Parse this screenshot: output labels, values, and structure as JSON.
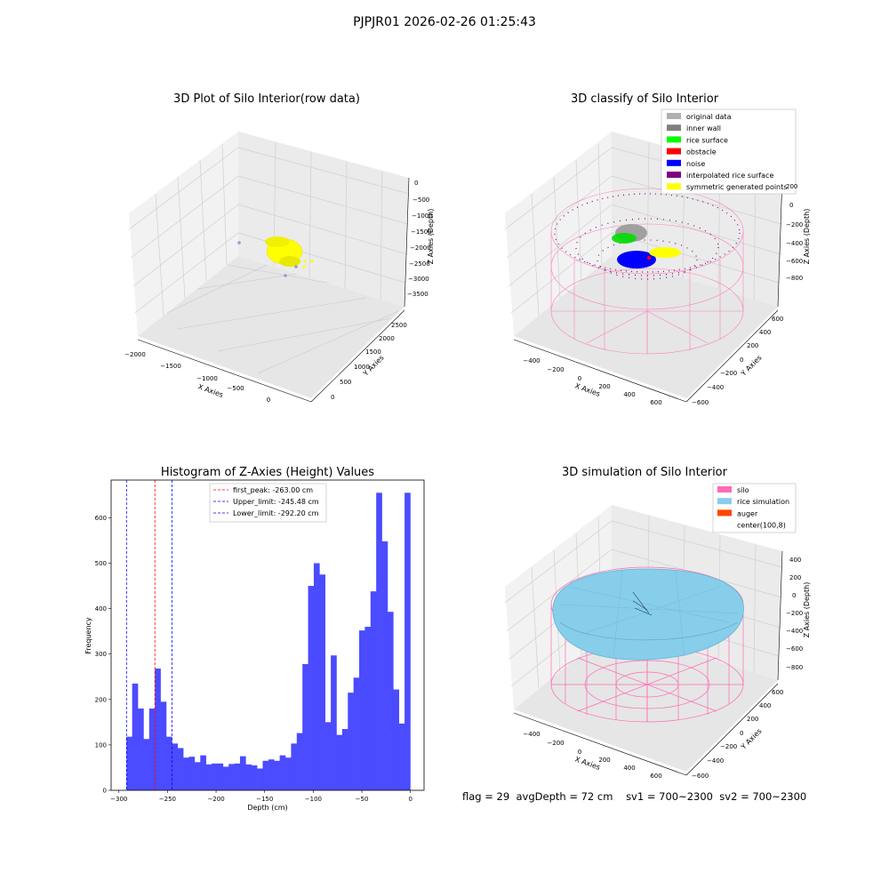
{
  "figure": {
    "title": "PJPJR01 2026-02-26 01:25:43",
    "status": {
      "flag": "flag = 29",
      "avg_depth": "avgDepth = 72 cm",
      "sv1": "sv1 = 700~2300",
      "sv2": "sv2 = 700~2300"
    }
  },
  "colors": {
    "histogram_bar": "#4b4bff",
    "first_peak_line": "#ff0000",
    "limit_lines": "#0000ff",
    "silo_wire": "#ff69b4",
    "rice_simulation": "#87ceeb",
    "auger": "#ff4500",
    "yellow_points": "#ffff00",
    "green_points": "#00ff00",
    "blue_points": "#0000ff",
    "grey_points": "#888888"
  },
  "chart_data": [
    {
      "type": "scatter",
      "projection": "3d",
      "title": "3D Plot of Silo Interior(row data)",
      "xlabel": "X Axies",
      "ylabel": "Y Axies",
      "zlabel": "Z Axies (Depth)",
      "x_ticks": [
        "−2000",
        "−1500",
        "−1000",
        "−500",
        "0"
      ],
      "y_ticks": [
        "0",
        "500",
        "1000",
        "1500",
        "2000",
        "2500"
      ],
      "z_ticks": [
        "0",
        "−500",
        "−1000",
        "−1500",
        "−2000",
        "−2500",
        "−3000",
        "−3500"
      ],
      "grid": true,
      "series": [
        {
          "color": "#ffff00",
          "description_points": "dense cluster"
        }
      ]
    },
    {
      "type": "scatter",
      "projection": "3d",
      "title": "3D classify of Silo Interior",
      "xlabel": "X Axies",
      "ylabel": "Y Axies",
      "zlabel": "Z Axies (Depth)",
      "x_ticks": [
        "−400",
        "−200",
        "0",
        "200",
        "400",
        "600"
      ],
      "y_ticks": [
        "−600",
        "−400",
        "−200",
        "0",
        "200",
        "400",
        "600"
      ],
      "z_ticks": [
        "200",
        "0",
        "−200",
        "−400",
        "−600",
        "−800"
      ],
      "grid": true,
      "legend_position": "top-right",
      "legend": [
        {
          "label": "original data",
          "color": "#b0b0b0"
        },
        {
          "label": "inner wall",
          "color": "#808080"
        },
        {
          "label": "rice surface",
          "color": "#00ff00"
        },
        {
          "label": "obstacle",
          "color": "#ff0000"
        },
        {
          "label": "noise",
          "color": "#0000ff"
        },
        {
          "label": "interpolated rice surface",
          "color": "#800080"
        },
        {
          "label": "symmetric generated points",
          "color": "#ffff00"
        }
      ]
    },
    {
      "type": "bar",
      "title": "Histogram of Z-Axies (Height) Values",
      "xlabel": "Depth (cm)",
      "ylabel": "Frequency",
      "xlim": [
        -308,
        14
      ],
      "ylim": [
        0,
        683
      ],
      "x_ticks": [
        -300,
        -250,
        -200,
        -150,
        -100,
        -50,
        0
      ],
      "y_ticks": [
        0,
        100,
        200,
        300,
        400,
        500,
        600
      ],
      "bin_start": -292.2,
      "bin_width": 5.84,
      "values": [
        118,
        235,
        180,
        113,
        180,
        268,
        195,
        118,
        103,
        93,
        72,
        74,
        62,
        77,
        57,
        59,
        59,
        52,
        58,
        59,
        75,
        57,
        55,
        48,
        65,
        68,
        65,
        77,
        72,
        103,
        126,
        278,
        450,
        500,
        475,
        150,
        297,
        122,
        135,
        215,
        248,
        352,
        360,
        438,
        655,
        548,
        393,
        222,
        147,
        655
      ],
      "legend_position": "top-center",
      "reference_lines": [
        {
          "label": "first_peak: -263.00 cm",
          "x": -263.0,
          "color": "#ff0000"
        },
        {
          "label": "Upper_limit: -245.48 cm",
          "x": -245.48,
          "color": "#0000ff"
        },
        {
          "label": "Lower_limit: -292.20 cm",
          "x": -292.2,
          "color": "#0000ff"
        }
      ]
    },
    {
      "type": "surface",
      "projection": "3d",
      "title": "3D simulation of Silo Interior",
      "xlabel": "X Axies",
      "ylabel": "Y Axies",
      "zlabel": "Z Axies (Depth)",
      "x_ticks": [
        "−400",
        "−200",
        "0",
        "200",
        "400",
        "600"
      ],
      "y_ticks": [
        "−600",
        "−400",
        "−200",
        "0",
        "200",
        "400",
        "600"
      ],
      "z_ticks": [
        "400",
        "200",
        "0",
        "−200",
        "−400",
        "−600",
        "−800"
      ],
      "grid": true,
      "legend_position": "top-right",
      "legend": [
        {
          "label": "silo",
          "color": "#ff69b4"
        },
        {
          "label": "rice simulation",
          "color": "#87ceeb"
        },
        {
          "label": "auger",
          "color": "#ff4500"
        },
        {
          "label": "center(100,8)",
          "color": ""
        }
      ]
    }
  ]
}
